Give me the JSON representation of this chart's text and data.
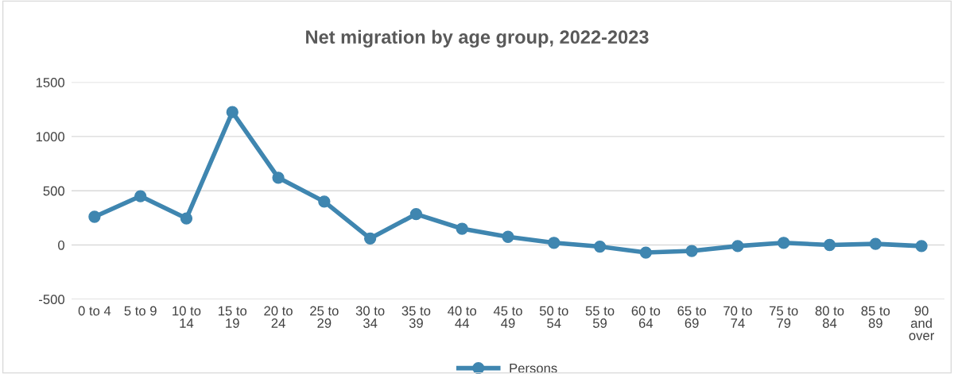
{
  "chart_data": {
    "type": "line",
    "title": "Net migration by age group, 2022-2023",
    "categories": [
      "0 to 4",
      "5 to 9",
      "10 to 14",
      "15 to 19",
      "20 to 24",
      "25 to 29",
      "30 to 34",
      "35 to 39",
      "40 to 44",
      "45 to 49",
      "50 to 54",
      "55 to 59",
      "60 to 64",
      "65 to 69",
      "70 to 74",
      "75 to 79",
      "80 to 84",
      "85 to 89",
      "90 and over"
    ],
    "series": [
      {
        "name": "Persons",
        "color": "#3f86b0",
        "values": [
          260,
          450,
          245,
          1225,
          620,
          400,
          60,
          285,
          150,
          75,
          20,
          -15,
          -70,
          -55,
          -10,
          20,
          0,
          10,
          -10
        ]
      }
    ],
    "ylim": [
      -500,
      1500
    ],
    "yticks": [
      -500,
      0,
      500,
      1000,
      1500
    ],
    "grid": "y",
    "legend": "bottom",
    "marker": "circle",
    "line_style": "solid"
  }
}
